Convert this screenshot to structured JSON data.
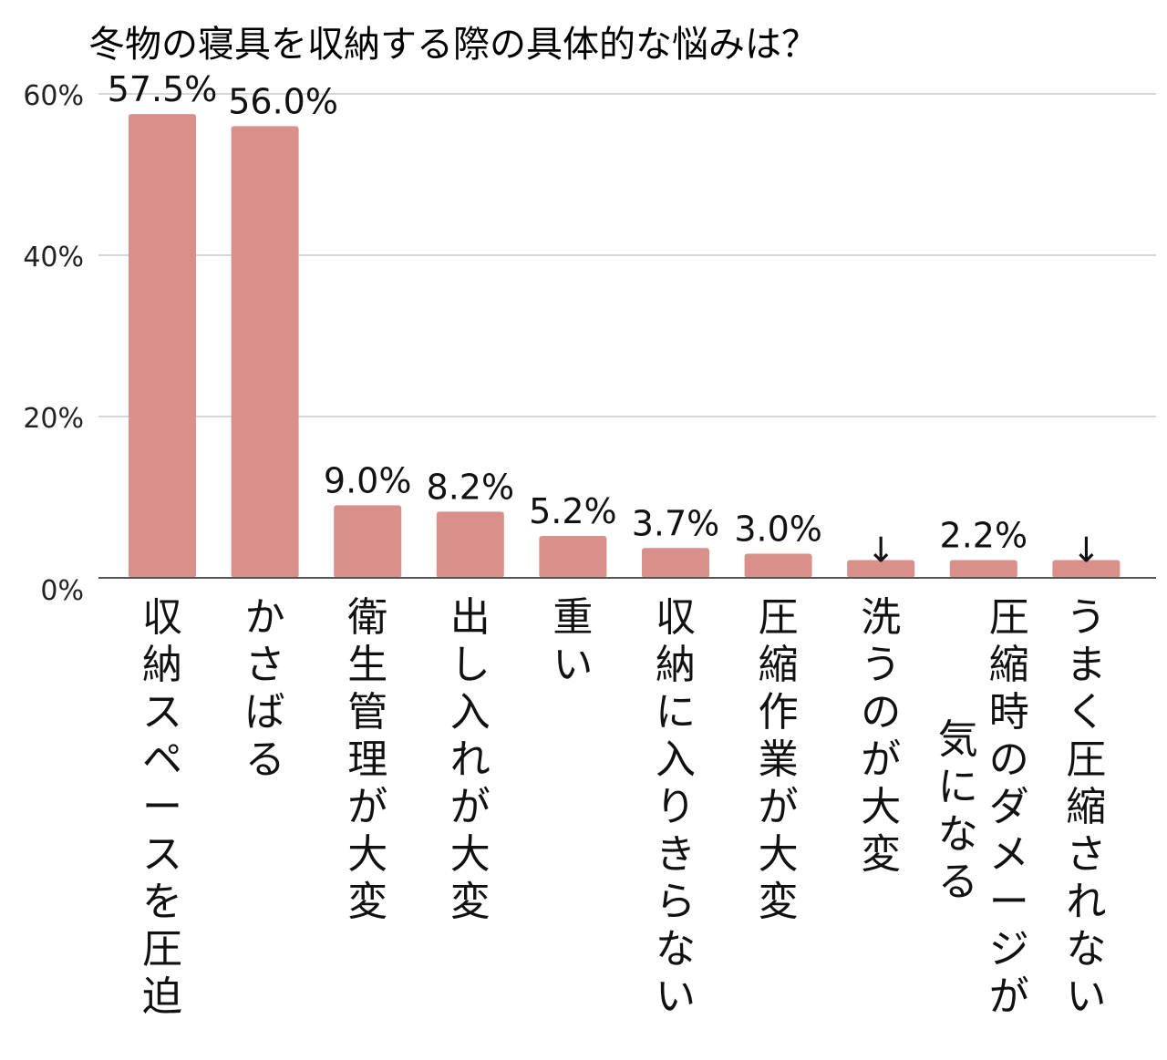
{
  "chart_data": {
    "type": "bar",
    "title": "冬物の寝具を収納する際の具体的な悩みは？",
    "xlabel": "",
    "ylabel": "",
    "ylim": [
      0,
      60
    ],
    "yticks": [
      0,
      20,
      40,
      60
    ],
    "ytick_labels": [
      "0%",
      "20%",
      "40%",
      "60%"
    ],
    "grid": true,
    "bar_color": "#d9908b",
    "categories": [
      "収納スペースを圧迫",
      "かさばる",
      "衛生管理が大変",
      "出し入れが大変",
      "重い",
      "収納に入りきらない",
      "圧縮作業が大変",
      "洗うのが大変",
      "圧縮時のダメージが気になる",
      "うまく圧縮されない"
    ],
    "category_lines": [
      [
        "収納スペースを圧迫"
      ],
      [
        "かさばる"
      ],
      [
        "衛生管理が大変"
      ],
      [
        "出し入れが大変"
      ],
      [
        "重い"
      ],
      [
        "収納に入りきらない"
      ],
      [
        "圧縮作業が大変"
      ],
      [
        "洗うのが大変"
      ],
      [
        "圧縮時のダメージが",
        "気になる"
      ],
      [
        "うまく圧縮されない"
      ]
    ],
    "values": [
      57.5,
      56.0,
      9.0,
      8.2,
      5.2,
      3.7,
      3.0,
      2.2,
      2.2,
      2.2
    ],
    "data_labels": [
      "57.5%",
      "56.0%",
      "9.0%",
      "8.2%",
      "5.2%",
      "3.7%",
      "3.0%",
      "↓",
      "2.2%",
      "↓"
    ]
  }
}
